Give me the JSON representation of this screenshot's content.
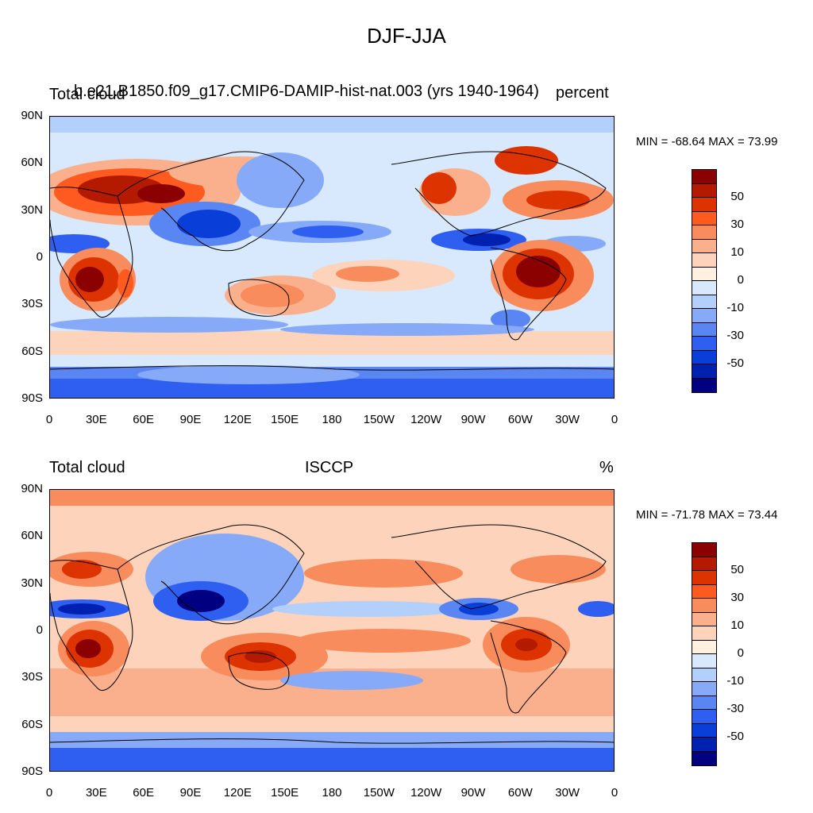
{
  "title": "DJF-JJA",
  "colorbar": {
    "colors": [
      "#8b0000",
      "#b31a00",
      "#dd3300",
      "#ff5a1f",
      "#f98c5c",
      "#fbb08d",
      "#fdd3bb",
      "#fff0e0",
      "#d8e8fd",
      "#b3cffb",
      "#86aaf7",
      "#5a86f3",
      "#2e5ff0",
      "#0a3ed8",
      "#0020b0",
      "#000080"
    ],
    "labels": [
      "50",
      "30",
      "10",
      "0",
      "-10",
      "-30",
      "-50"
    ]
  },
  "x_ticks": [
    "0",
    "30E",
    "60E",
    "90E",
    "120E",
    "150E",
    "180",
    "150W",
    "120W",
    "90W",
    "60W",
    "30W",
    "0"
  ],
  "y_ticks": [
    "90N",
    "60N",
    "30N",
    "0",
    "30S",
    "60S",
    "90S"
  ],
  "panels": [
    {
      "left_title": "Total cloud",
      "center_title": "b.e21.B1850.f09_g17.CMIP6-DAMIP-hist-nat.003 (yrs 1940-1964)",
      "right_title": "percent",
      "min_max": "MIN = -68.64 MAX =  73.99"
    },
    {
      "left_title": "Total cloud",
      "center_title": "ISCCP",
      "right_title": "%",
      "min_max": "MIN = -71.78 MAX =  73.44"
    }
  ]
}
